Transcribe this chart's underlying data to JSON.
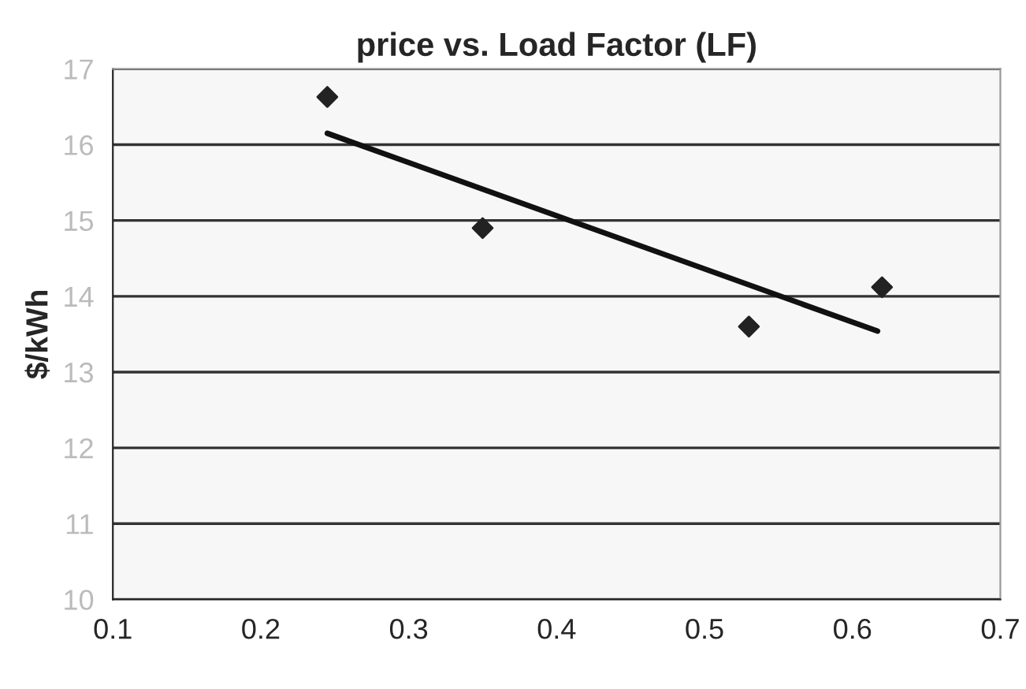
{
  "chart_data": {
    "type": "scatter",
    "title": "price vs. Load Factor (LF)",
    "ylabel": "$/kWh",
    "xlim": [
      0.1,
      0.7
    ],
    "xticks": [
      0.1,
      0.2,
      0.3,
      0.4,
      0.5,
      0.6,
      0.7
    ],
    "ylim": [
      10,
      17
    ],
    "yticks": [
      10,
      11,
      12,
      13,
      14,
      15,
      16,
      17
    ],
    "grid": "y",
    "marker": "diamond",
    "series": [
      {
        "color": "#222222",
        "x": [
          0.245,
          0.35,
          0.53,
          0.62
        ],
        "values": [
          16.63,
          14.9,
          13.6,
          14.12
        ]
      },
      {
        "type": "line",
        "color": "#111111",
        "x": [
          0.245,
          0.617
        ],
        "values": [
          16.15,
          13.54
        ],
        "marker": "none",
        "line_style": "solid"
      }
    ]
  }
}
